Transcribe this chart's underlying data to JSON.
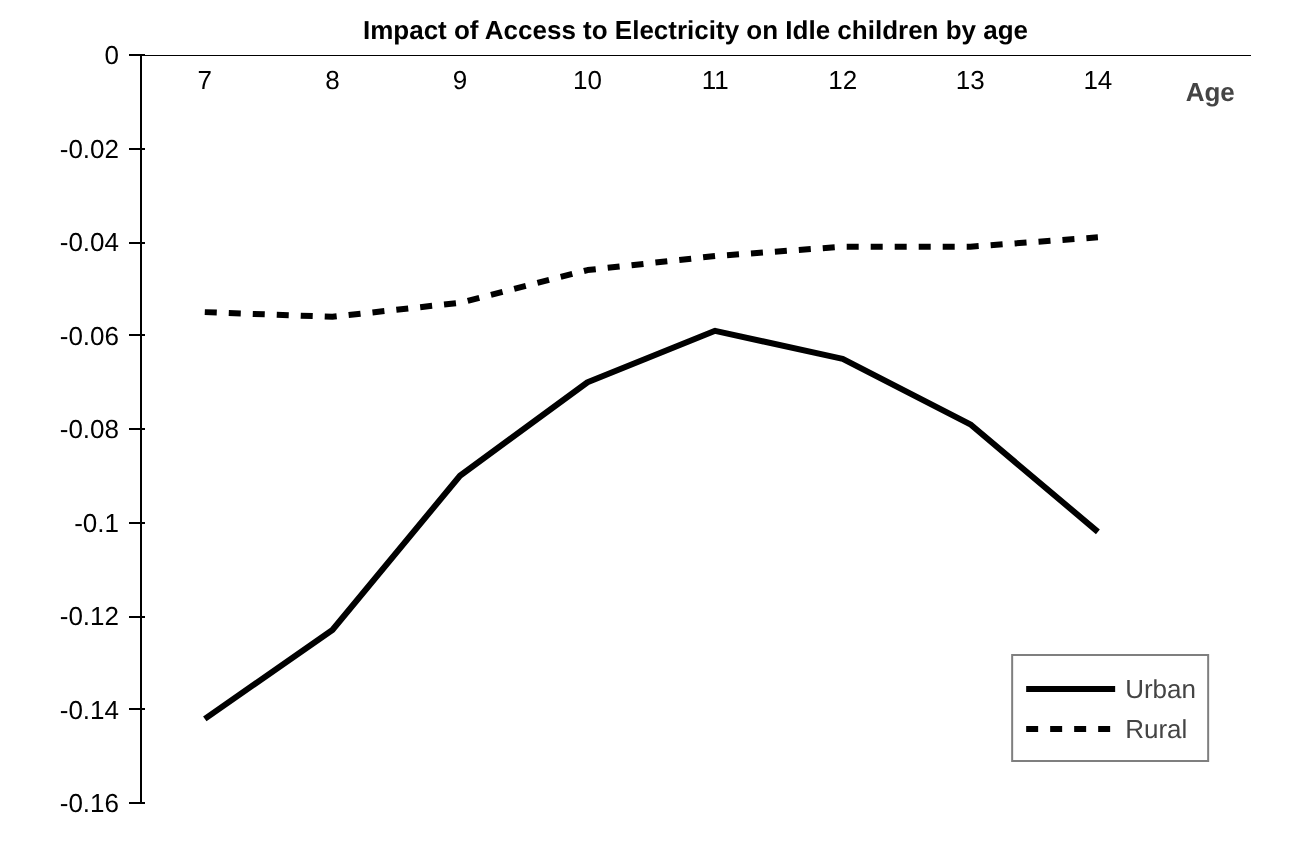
{
  "chart_data": {
    "type": "line",
    "title": "Impact of Access to Electricity on Idle children by age",
    "xlabel": "Age",
    "categories": [
      "7",
      "8",
      "9",
      "10",
      "11",
      "12",
      "13",
      "14"
    ],
    "series": [
      {
        "name": "Urban",
        "color": "#000000",
        "line_style": "solid",
        "values": [
          -0.142,
          -0.123,
          -0.09,
          -0.07,
          -0.059,
          -0.065,
          -0.079,
          -0.102
        ]
      },
      {
        "name": "Rural",
        "color": "#000000",
        "line_style": "dashed",
        "values": [
          -0.055,
          -0.056,
          -0.053,
          -0.046,
          -0.043,
          -0.041,
          -0.041,
          -0.039
        ]
      }
    ],
    "ylim": [
      -0.16,
      0
    ],
    "yticks": [
      -0.16,
      -0.14,
      -0.12,
      -0.1,
      -0.08,
      -0.06,
      -0.04,
      -0.02,
      0
    ],
    "grid": false,
    "legend": "bottom right",
    "marker": "none"
  }
}
